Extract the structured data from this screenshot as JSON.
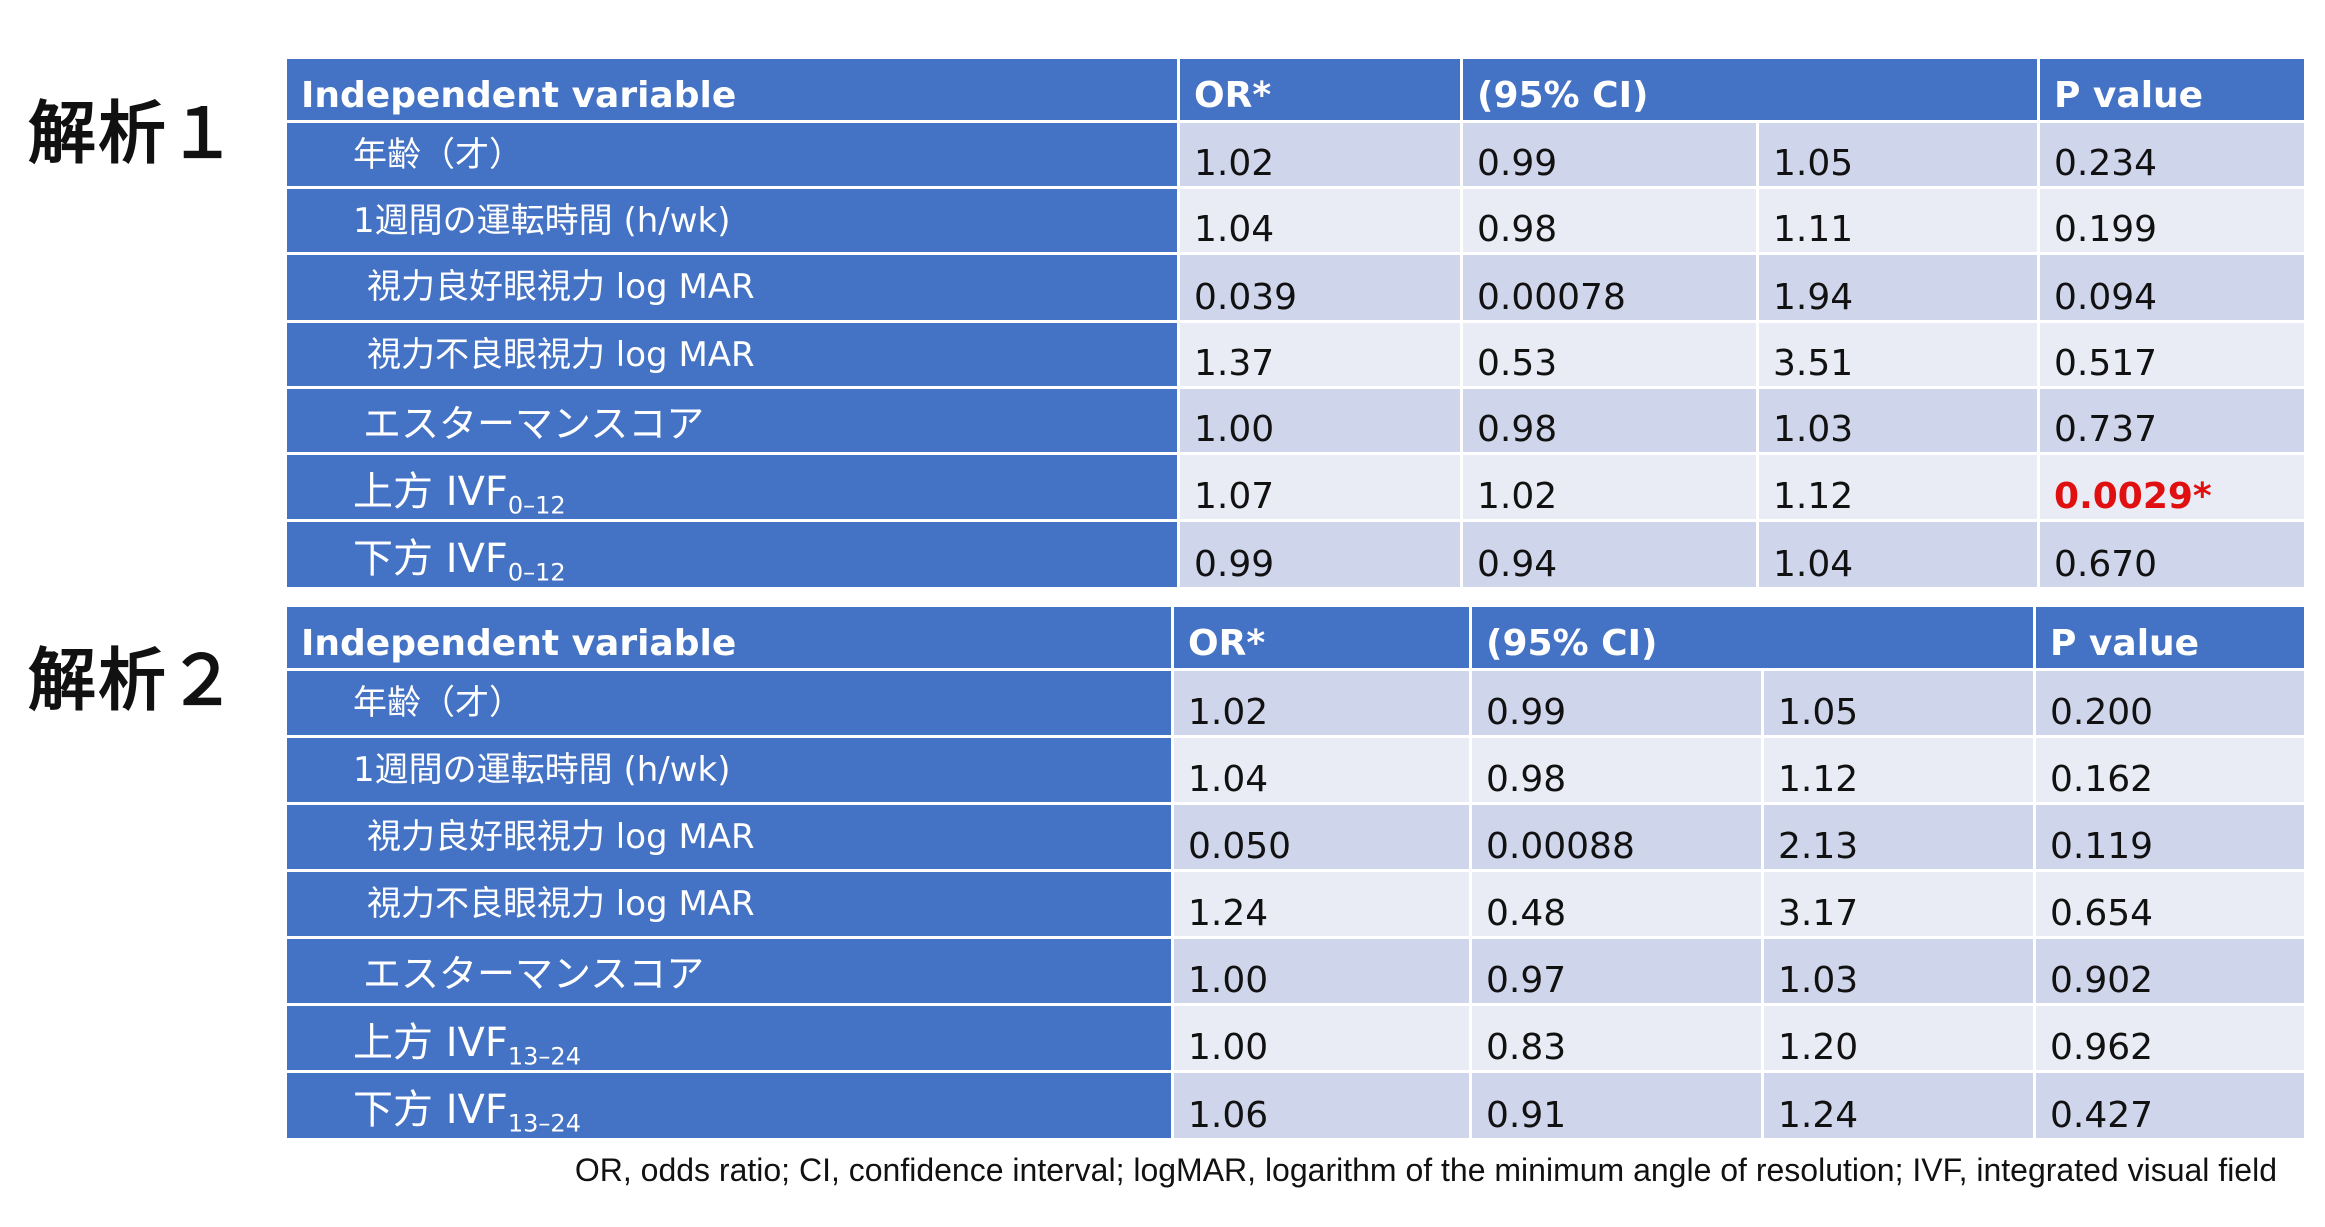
{
  "analysis1": {
    "label": "解析１",
    "headers": {
      "variable": "Independent variable",
      "or": "OR*",
      "ci": "(95% CI)",
      "p": "P value"
    },
    "rows": [
      {
        "name": "年齢（才）",
        "sub": "",
        "or": "1.02",
        "lo": "0.99",
        "hi": "1.05",
        "p": "0.234"
      },
      {
        "name": "1週間の運転時間 (h/wk)",
        "sub": "",
        "or": "1.04",
        "lo": "0.98",
        "hi": "1.11",
        "p": "0.199"
      },
      {
        "name": "視力良好眼視力 log MAR",
        "sub": "",
        "or": "0.039",
        "lo": "0.00078",
        "hi": "1.94",
        "p": "0.094"
      },
      {
        "name": "視力不良眼視力 log MAR",
        "sub": "",
        "or": "1.37",
        "lo": "0.53",
        "hi": "3.51",
        "p": "0.517"
      },
      {
        "name": "エスターマンスコア",
        "sub": "",
        "or": "1.00",
        "lo": "0.98",
        "hi": "1.03",
        "p": "0.737"
      },
      {
        "name": "上方 IVF",
        "sub": "0–12",
        "or": "1.07",
        "lo": "1.02",
        "hi": "1.12",
        "p": "0.0029*"
      },
      {
        "name": "下方 IVF",
        "sub": "0–12",
        "or": "0.99",
        "lo": "0.94",
        "hi": "1.04",
        "p": "0.670"
      }
    ]
  },
  "analysis2": {
    "label": "解析２",
    "headers": {
      "variable": "Independent variable",
      "or": "OR*",
      "ci": "(95% CI)",
      "p": "P value"
    },
    "rows": [
      {
        "name": "年齢（才）",
        "sub": "",
        "or": "1.02",
        "lo": "0.99",
        "hi": "1.05",
        "p": "0.200"
      },
      {
        "name": "1週間の運転時間 (h/wk)",
        "sub": "",
        "or": "1.04",
        "lo": "0.98",
        "hi": "1.12",
        "p": "0.162"
      },
      {
        "name": "視力良好眼視力 log MAR",
        "sub": "",
        "or": "0.050",
        "lo": "0.00088",
        "hi": "2.13",
        "p": "0.119"
      },
      {
        "name": "視力不良眼視力 log MAR",
        "sub": "",
        "or": "1.24",
        "lo": "0.48",
        "hi": "3.17",
        "p": "0.654"
      },
      {
        "name": "エスターマンスコア",
        "sub": "",
        "or": "1.00",
        "lo": "0.97",
        "hi": "1.03",
        "p": "0.902"
      },
      {
        "name": "上方 IVF",
        "sub": "13–24",
        "or": "1.00",
        "lo": "0.83",
        "hi": "1.20",
        "p": "0.962"
      },
      {
        "name": "下方 IVF",
        "sub": "13–24",
        "or": "1.06",
        "lo": "0.91",
        "hi": "1.24",
        "p": "0.427"
      }
    ]
  },
  "significant_color": "#e01010",
  "header_color": "#4472c4",
  "footnote": "OR, odds ratio; CI, confidence interval;  logMAR, logarithm of the minimum angle of resolution; IVF, integrated visual field"
}
